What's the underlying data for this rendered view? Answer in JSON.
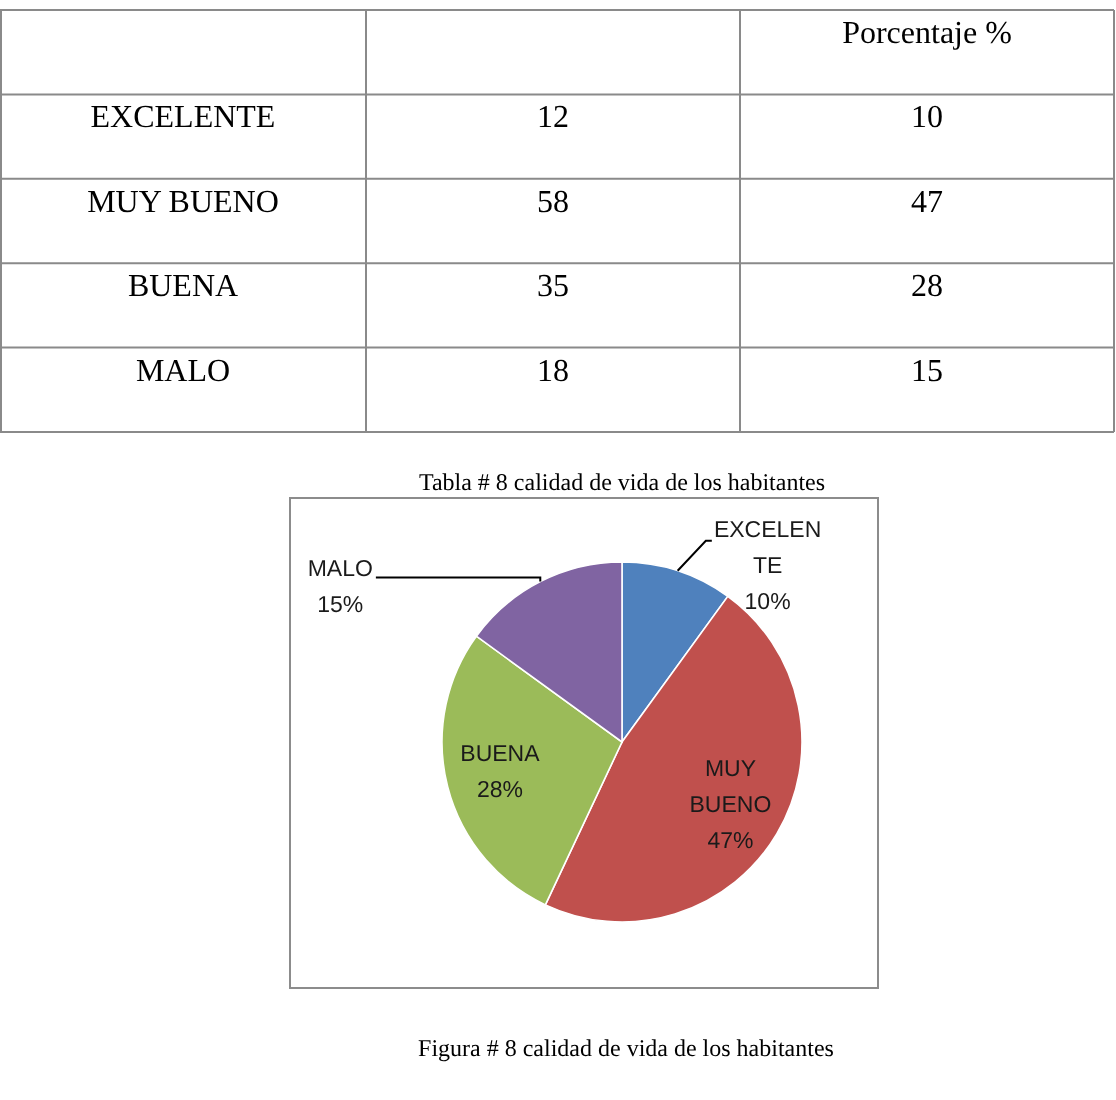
{
  "chart_data": [
    {
      "type": "other",
      "categories": [
        "EXCELENTE",
        "MUY BUENO",
        "BUENA",
        "MALO"
      ],
      "series": [
        {
          "values": [
            12,
            58,
            35,
            18
          ]
        },
        {
          "name": "Porcentaje %",
          "values": [
            10,
            47,
            28,
            15
          ]
        }
      ],
      "data_labels": true,
      "annotations": [
        "Tabla # 8 calidad de vida de los habitantes"
      ]
    },
    {
      "type": "pie",
      "categories": [
        "EXCELENTE",
        "MUY BUENO",
        "BUENA",
        "MALO"
      ],
      "values": [
        10,
        47,
        28,
        15
      ],
      "colors": [
        "#4f81bd",
        "#c0504d",
        "#9bbb59",
        "#8064a2"
      ],
      "value_labels": [
        "10%",
        "47%",
        "28%",
        "15%"
      ],
      "annotations": [
        "Figura # 8 calidad de vida de los habitantes"
      ]
    }
  ]
}
